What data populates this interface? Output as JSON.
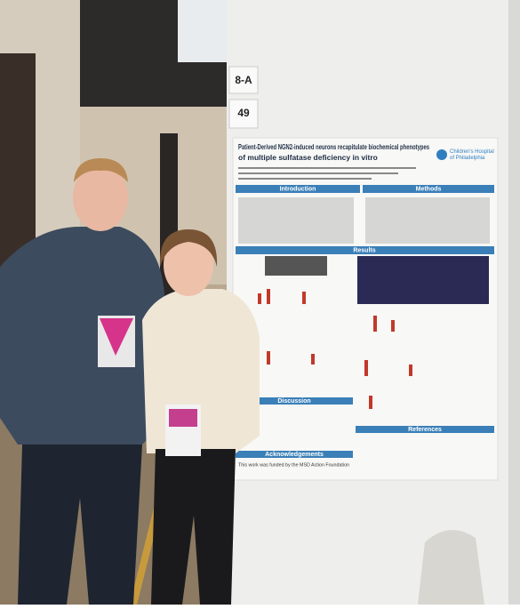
{
  "signs": {
    "row": "8-A",
    "number": "49"
  },
  "poster": {
    "title_lines": [
      "Patient-Derived NGN2-induced neurons recapitulate biochemical phenotypes",
      "of multiple sulfatase deficiency in vitro"
    ],
    "logo_lines": [
      "Children's Hospital",
      "of Philadelphia"
    ],
    "sections": {
      "introduction": "Introduction",
      "methods": "Methods",
      "results": "Results",
      "discussion": "Discussion",
      "acknowledgements": "Acknowledgements",
      "references": "References"
    },
    "acknowledgement": "This work was funded by the MSD Action Foundation"
  }
}
